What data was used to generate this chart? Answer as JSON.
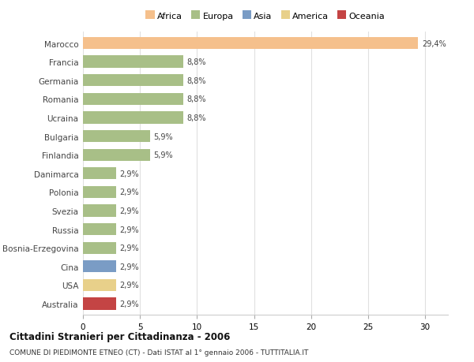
{
  "categories": [
    "Marocco",
    "Francia",
    "Germania",
    "Romania",
    "Ucraina",
    "Bulgaria",
    "Finlandia",
    "Danimarca",
    "Polonia",
    "Svezia",
    "Russia",
    "Bosnia-Erzegovina",
    "Cina",
    "USA",
    "Australia"
  ],
  "values": [
    29.4,
    8.8,
    8.8,
    8.8,
    8.8,
    5.9,
    5.9,
    2.9,
    2.9,
    2.9,
    2.9,
    2.9,
    2.9,
    2.9,
    2.9
  ],
  "labels": [
    "29,4%",
    "8,8%",
    "8,8%",
    "8,8%",
    "8,8%",
    "5,9%",
    "5,9%",
    "2,9%",
    "2,9%",
    "2,9%",
    "2,9%",
    "2,9%",
    "2,9%",
    "2,9%",
    "2,9%"
  ],
  "colors": [
    "#F5C08C",
    "#A8BF87",
    "#A8BF87",
    "#A8BF87",
    "#A8BF87",
    "#A8BF87",
    "#A8BF87",
    "#A8BF87",
    "#A8BF87",
    "#A8BF87",
    "#A8BF87",
    "#A8BF87",
    "#7A9CC5",
    "#E8D08A",
    "#C44444"
  ],
  "legend_labels": [
    "Africa",
    "Europa",
    "Asia",
    "America",
    "Oceania"
  ],
  "legend_colors": [
    "#F5C08C",
    "#A8BF87",
    "#7A9CC5",
    "#E8D08A",
    "#C44444"
  ],
  "title_main": "Cittadini Stranieri per Cittadinanza - 2006",
  "title_sub": "COMUNE DI PIEDIMONTE ETNEO (CT) - Dati ISTAT al 1° gennaio 2006 - TUTTITALIA.IT",
  "xlim": [
    0,
    32
  ],
  "xticks": [
    0,
    5,
    10,
    15,
    20,
    25,
    30
  ],
  "background_color": "#ffffff",
  "bar_height": 0.65,
  "grid_color": "#e0e0e0"
}
